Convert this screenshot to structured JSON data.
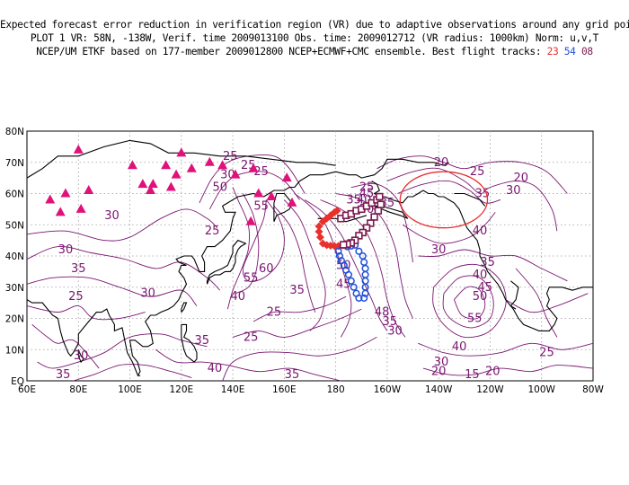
{
  "header": {
    "line1": "Expected forecast error reduction in verification region (VR) due to adaptive observations around any grid point.",
    "line2": "PLOT 1 VR: 58N, -138W, Verif. time 2009013100 Obs. time: 2009012712 (VR radius: 1000km) Norm: u,v,T",
    "line3_prefix": "NCEP/UM ETKF based on 177-member 2009012800 NCEP+ECMWF+CMC ensemble. Best flight tracks:",
    "tracks": [
      {
        "label": "23",
        "color": "#e8302c"
      },
      {
        "label": "54",
        "color": "#2050d8"
      },
      {
        "label": "08",
        "color": "#7a1a4e"
      }
    ]
  },
  "axes": {
    "x_ticks": [
      "60E",
      "80E",
      "100E",
      "120E",
      "140E",
      "160E",
      "180",
      "160W",
      "140W",
      "120W",
      "100W",
      "80W"
    ],
    "y_ticks": [
      "EQ",
      "10N",
      "20N",
      "30N",
      "40N",
      "50N",
      "60N",
      "70N",
      "80N"
    ]
  },
  "contour_labels": [
    {
      "text": "30",
      "lon": 75,
      "lat": 42
    },
    {
      "text": "35",
      "lon": 80,
      "lat": 36
    },
    {
      "text": "25",
      "lon": 79,
      "lat": 27
    },
    {
      "text": "30",
      "lon": 107,
      "lat": 28
    },
    {
      "text": "30",
      "lon": 93,
      "lat": 53
    },
    {
      "text": "25",
      "lon": 132,
      "lat": 48
    },
    {
      "text": "35",
      "lon": 128,
      "lat": 13
    },
    {
      "text": "30",
      "lon": 81,
      "lat": 8
    },
    {
      "text": "35",
      "lon": 74,
      "lat": 2
    },
    {
      "text": "40",
      "lon": 133,
      "lat": 4
    },
    {
      "text": "25",
      "lon": 139,
      "lat": 72
    },
    {
      "text": "25",
      "lon": 146,
      "lat": 69
    },
    {
      "text": "25",
      "lon": 151,
      "lat": 67
    },
    {
      "text": "30",
      "lon": 138,
      "lat": 66
    },
    {
      "text": "50",
      "lon": 135,
      "lat": 62
    },
    {
      "text": "55",
      "lon": 151,
      "lat": 56
    },
    {
      "text": "60",
      "lon": 153,
      "lat": 36
    },
    {
      "text": "55",
      "lon": 147,
      "lat": 33
    },
    {
      "text": "40",
      "lon": 142,
      "lat": 27
    },
    {
      "text": "25",
      "lon": 156,
      "lat": 22
    },
    {
      "text": "35",
      "lon": 165,
      "lat": 29
    },
    {
      "text": "25",
      "lon": 147,
      "lat": 14
    },
    {
      "text": "35",
      "lon": 163,
      "lat": 2
    },
    {
      "text": "50",
      "lon": 183,
      "lat": 37
    },
    {
      "text": "45",
      "lon": 183,
      "lat": 31
    },
    {
      "text": "25",
      "lon": 192,
      "lat": 62
    },
    {
      "text": "35",
      "lon": 187,
      "lat": 58
    },
    {
      "text": "40",
      "lon": 191,
      "lat": 58
    },
    {
      "text": "45",
      "lon": 192,
      "lat": 60
    },
    {
      "text": "50",
      "lon": 192,
      "lat": 55
    },
    {
      "text": "35",
      "lon": 200,
      "lat": 57
    },
    {
      "text": "48",
      "lon": 198,
      "lat": 22
    },
    {
      "text": "35",
      "lon": 201,
      "lat": 19
    },
    {
      "text": "30",
      "lon": 203,
      "lat": 16
    },
    {
      "text": "20",
      "lon": 221,
      "lat": 70
    },
    {
      "text": "25",
      "lon": 235,
      "lat": 67
    },
    {
      "text": "30",
      "lon": 249,
      "lat": 61
    },
    {
      "text": "35",
      "lon": 237,
      "lat": 60
    },
    {
      "text": "20",
      "lon": 252,
      "lat": 65
    },
    {
      "text": "30",
      "lon": 220,
      "lat": 42
    },
    {
      "text": "40",
      "lon": 236,
      "lat": 48
    },
    {
      "text": "35",
      "lon": 239,
      "lat": 38
    },
    {
      "text": "40",
      "lon": 236,
      "lat": 34
    },
    {
      "text": "45",
      "lon": 238,
      "lat": 30
    },
    {
      "text": "50",
      "lon": 236,
      "lat": 27
    },
    {
      "text": "55",
      "lon": 234,
      "lat": 20
    },
    {
      "text": "40",
      "lon": 228,
      "lat": 11
    },
    {
      "text": "30",
      "lon": 221,
      "lat": 6
    },
    {
      "text": "20",
      "lon": 220,
      "lat": 3
    },
    {
      "text": "15",
      "lon": 233,
      "lat": 2
    },
    {
      "text": "20",
      "lon": 241,
      "lat": 3
    },
    {
      "text": "25",
      "lon": 262,
      "lat": 9
    }
  ],
  "observation_sites": [
    [
      69,
      58
    ],
    [
      73,
      54
    ],
    [
      75,
      60
    ],
    [
      81,
      55
    ],
    [
      80,
      74
    ],
    [
      84,
      61
    ],
    [
      101,
      69
    ],
    [
      105,
      63
    ],
    [
      108,
      61
    ],
    [
      109,
      63
    ],
    [
      116,
      62
    ],
    [
      118,
      66
    ],
    [
      114,
      69
    ],
    [
      120,
      73
    ],
    [
      124,
      68
    ],
    [
      131,
      70
    ],
    [
      136,
      69
    ],
    [
      141,
      66
    ],
    [
      148,
      68
    ],
    [
      150,
      60
    ],
    [
      155,
      59
    ],
    [
      161,
      65
    ],
    [
      163,
      57
    ],
    [
      147,
      51
    ]
  ],
  "flight_tracks": [
    {
      "label": "23",
      "color": "#e8302c",
      "marker": "diamond",
      "points": [
        [
          175,
          44
        ],
        [
          176.5,
          43.5
        ],
        [
          178,
          43.3
        ],
        [
          179.5,
          43.2
        ],
        [
          181,
          43.2
        ],
        [
          182.5,
          43.4
        ],
        [
          174,
          46
        ],
        [
          173.5,
          47.8
        ],
        [
          173.5,
          49.5
        ],
        [
          175,
          51
        ],
        [
          176.5,
          52
        ],
        [
          178,
          53
        ],
        [
          179.5,
          54
        ],
        [
          180.5,
          54.5
        ]
      ]
    },
    {
      "label": "54",
      "color": "#2050d8",
      "marker": "circle",
      "points": [
        [
          183,
          43.5
        ],
        [
          184.5,
          43
        ],
        [
          186,
          43.2
        ],
        [
          187.5,
          43.5
        ],
        [
          189,
          41.5
        ],
        [
          190.5,
          40
        ],
        [
          191,
          38
        ],
        [
          191.5,
          36
        ],
        [
          191.5,
          34
        ],
        [
          191.5,
          32
        ],
        [
          191.5,
          30
        ],
        [
          191.5,
          28
        ],
        [
          191,
          26.5
        ],
        [
          189,
          26.5
        ],
        [
          188,
          28
        ],
        [
          187,
          30
        ],
        [
          186,
          32
        ],
        [
          185,
          34
        ],
        [
          184,
          35.5
        ],
        [
          183.2,
          37
        ],
        [
          182.2,
          38.5
        ],
        [
          181.5,
          40
        ],
        [
          181,
          41.5
        ]
      ]
    },
    {
      "label": "08",
      "color": "#7a1a4e",
      "marker": "square",
      "points": [
        [
          182,
          52
        ],
        [
          184,
          53
        ],
        [
          186,
          53.5
        ],
        [
          188,
          54.5
        ],
        [
          190,
          55
        ],
        [
          192,
          56
        ],
        [
          194,
          57
        ],
        [
          196,
          58
        ],
        [
          197,
          59
        ],
        [
          197.5,
          56.5
        ],
        [
          196.5,
          54.5
        ],
        [
          195,
          52.5
        ],
        [
          193.5,
          50.5
        ],
        [
          192,
          49
        ],
        [
          190.5,
          47.5
        ],
        [
          189,
          46.5
        ],
        [
          187.5,
          45
        ],
        [
          186,
          44.2
        ],
        [
          184.5,
          43.8
        ],
        [
          183,
          43.6
        ]
      ]
    }
  ],
  "verification_region": {
    "center_lon": 222,
    "center_lat": 58,
    "radius_km": 1000
  },
  "colors": {
    "contour": "#7a1670",
    "coast": "#000000",
    "site_marker": "#e0127a",
    "region": "#e8302c"
  }
}
